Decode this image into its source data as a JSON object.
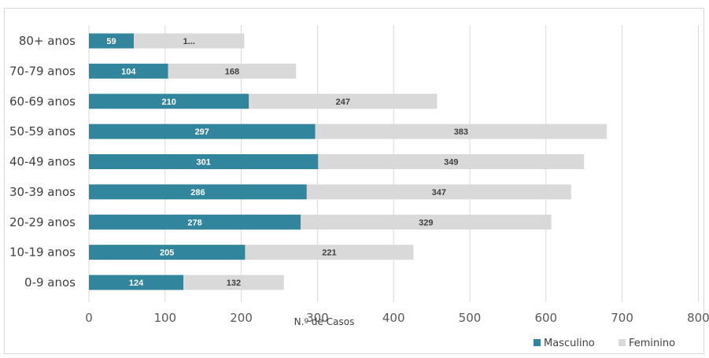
{
  "chart_data": {
    "type": "bar",
    "orientation": "horizontal",
    "stacked": true,
    "categories": [
      "80+ anos",
      "70-79 anos",
      "60-69 anos",
      "50-59 anos",
      "40-49 anos",
      "30-39 anos",
      "20-29 anos",
      "10-19 anos",
      "0-9 anos"
    ],
    "series": [
      {
        "name": "Masculino",
        "color": "#31859c",
        "values": [
          59,
          104,
          210,
          297,
          301,
          286,
          278,
          205,
          124
        ],
        "labels": [
          "59",
          "104",
          "210",
          "297",
          "301",
          "286",
          "278",
          "205",
          "124"
        ]
      },
      {
        "name": "Feminino",
        "color": "#d9d9d9",
        "values": [
          145,
          168,
          247,
          383,
          349,
          347,
          329,
          221,
          132
        ],
        "labels": [
          "1...",
          "168",
          "247",
          "383",
          "349",
          "347",
          "329",
          "221",
          "132"
        ]
      }
    ],
    "title": "",
    "xlabel": "N.º de Casos",
    "ylabel": "",
    "xlim": [
      0,
      800
    ],
    "xticks": [
      "0",
      "100",
      "200",
      "300",
      "400",
      "500",
      "600",
      "700",
      "800"
    ],
    "grid": true,
    "legend_position": "bottom-right"
  }
}
